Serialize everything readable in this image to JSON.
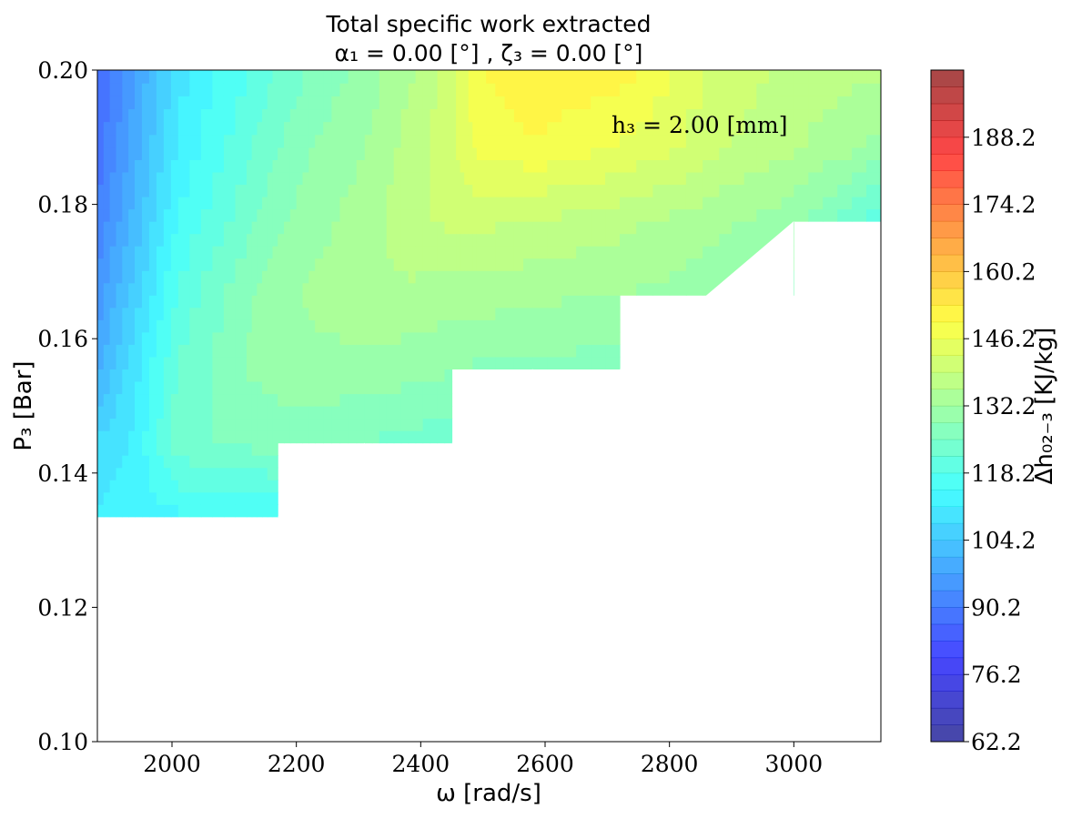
{
  "chart_data": {
    "type": "contour",
    "title": "Total specific work extracted",
    "subtitle": "α₁ = 0.00 [°] , ζ₃ = 0.00 [°]",
    "xlabel": "ω [rad/s]",
    "ylabel": "P₃ [Bar]",
    "annotation": "h₃ = 2.00 [mm]",
    "xlim": [
      1880,
      3140
    ],
    "ylim": [
      0.1,
      0.2
    ],
    "x_ticks": [
      "2000",
      "2200",
      "2400",
      "2600",
      "2800",
      "3000"
    ],
    "y_ticks": [
      "0.10",
      "0.12",
      "0.14",
      "0.16",
      "0.18",
      "0.20"
    ],
    "colorbar": {
      "label": "Δh₀₂₋₃ [KJ/kg]",
      "range": [
        62.2,
        202.2
      ],
      "level_step": 3.5,
      "ticks": [
        "62.2",
        "76.2",
        "90.2",
        "104.2",
        "118.2",
        "132.2",
        "146.2",
        "160.2",
        "174.2",
        "188.2"
      ]
    },
    "grid": {
      "x": [
        1880,
        1940,
        2010,
        2120,
        2170,
        2230,
        2310,
        2380,
        2450,
        2490,
        2580,
        2720,
        2880,
        3000,
        3140
      ],
      "y": [
        0.1335,
        0.1445,
        0.1555,
        0.1665,
        0.1775,
        0.1885,
        0.2
      ],
      "boundary_upper_x": [
        [
          0.1335,
          3140
        ],
        [
          0.1445,
          3140
        ],
        [
          0.1555,
          3140
        ],
        [
          0.1775,
          3140
        ]
      ],
      "valid_max_x": [
        2170,
        2450,
        2720,
        3000,
        3140,
        3140,
        3140
      ],
      "values": [
        [
          112,
          113,
          114,
          114,
          115,
          null,
          null,
          null,
          null,
          null,
          null,
          null,
          null,
          null,
          null
        ],
        [
          108,
          112,
          124,
          126,
          127,
          126,
          125,
          124,
          123,
          null,
          null,
          null,
          null,
          null,
          null
        ],
        [
          100,
          110,
          122,
          129,
          130,
          131,
          131,
          130,
          129,
          128,
          128,
          127,
          null,
          null,
          null
        ],
        [
          95,
          106,
          119,
          128,
          131,
          133,
          135,
          135,
          134,
          134,
          133,
          132,
          130,
          128,
          null
        ],
        [
          91,
          102,
          115,
          124,
          128,
          131,
          134,
          138,
          140,
          140,
          139,
          137,
          133,
          130,
          118
        ],
        [
          88,
          99,
          112,
          121,
          125,
          129,
          132,
          137,
          142,
          147,
          149,
          146,
          140,
          136,
          131
        ],
        [
          86,
          97,
          110,
          118,
          122,
          126,
          130,
          135,
          141,
          149,
          153,
          151,
          142,
          138,
          136
        ]
      ]
    }
  }
}
